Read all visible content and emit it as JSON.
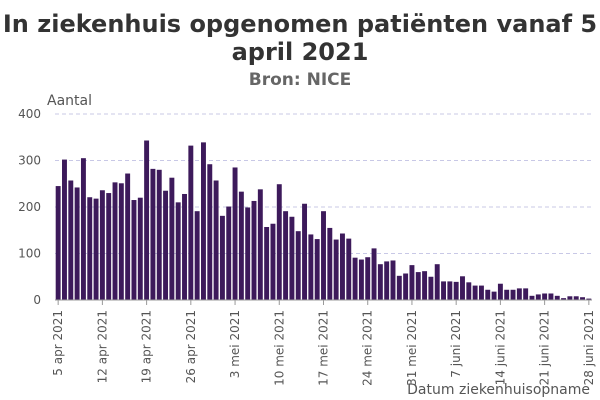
{
  "chart_data": {
    "type": "bar",
    "title": "In ziekenhuis opgenomen patiënten vanaf 5 april 2021",
    "subtitle": "Bron: NICE",
    "ylabel": "Aantal",
    "xlabel": "Datum ziekenhuisopname",
    "ylim": [
      0,
      400
    ],
    "y_ticks": [
      0,
      100,
      200,
      300,
      400
    ],
    "grid": true,
    "bar_color": "#3d1a5b",
    "grid_color": "#c8c8e6",
    "x_tick_labels": [
      "5 apr 2021",
      "12 apr 2021",
      "19 apr 2021",
      "26 apr 2021",
      "3 mei 2021",
      "10 mei 2021",
      "17 mei 2021",
      "24 mei 2021",
      "31 mei 2021",
      "7 juni 2021",
      "14 juni 2021",
      "21 juni 2021",
      "28 juni 2021"
    ],
    "values": [
      245,
      302,
      257,
      242,
      305,
      221,
      218,
      236,
      230,
      253,
      251,
      272,
      215,
      220,
      343,
      282,
      280,
      235,
      263,
      210,
      228,
      332,
      191,
      339,
      292,
      257,
      181,
      201,
      285,
      233,
      199,
      213,
      238,
      157,
      164,
      249,
      191,
      179,
      148,
      207,
      141,
      131,
      191,
      155,
      130,
      143,
      132,
      91,
      87,
      92,
      111,
      77,
      83,
      85,
      52,
      57,
      75,
      60,
      62,
      50,
      77,
      40,
      40,
      39,
      51,
      38,
      31,
      31,
      22,
      18,
      35,
      22,
      22,
      25,
      25,
      9,
      12,
      14,
      14,
      9,
      4,
      8,
      8,
      6,
      3
    ]
  }
}
